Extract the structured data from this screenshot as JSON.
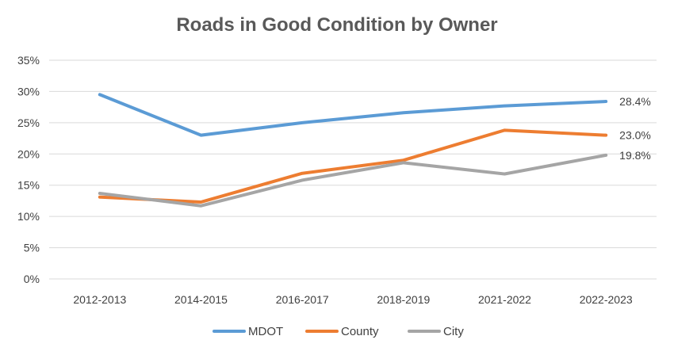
{
  "chart_data": {
    "type": "line",
    "title": "Roads in Good Condition by Owner",
    "xlabel": "",
    "ylabel": "",
    "categories": [
      "2012-2013",
      "2014-2015",
      "2016-2017",
      "2018-2019",
      "2021-2022",
      "2022-2023"
    ],
    "y_ticks": [
      "0%",
      "5%",
      "10%",
      "15%",
      "20%",
      "25%",
      "30%",
      "35%"
    ],
    "ylim": [
      0,
      35
    ],
    "grid": true,
    "legend_position": "bottom",
    "series": [
      {
        "name": "MDOT",
        "color": "#5B9BD5",
        "values": [
          29.5,
          23.0,
          25.0,
          26.6,
          27.7,
          28.4
        ],
        "end_label": "28.4%"
      },
      {
        "name": "County",
        "color": "#ED7D31",
        "values": [
          13.1,
          12.3,
          16.9,
          19.0,
          23.8,
          23.0
        ],
        "end_label": "23.0%"
      },
      {
        "name": "City",
        "color": "#A5A5A5",
        "values": [
          13.7,
          11.7,
          15.8,
          18.6,
          16.8,
          19.8
        ],
        "end_label": "19.8%"
      }
    ]
  }
}
